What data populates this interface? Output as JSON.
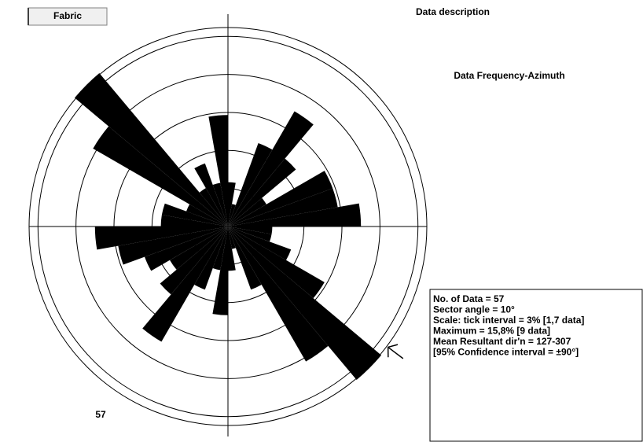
{
  "chart_data": {
    "type": "rose",
    "button": "Fabric",
    "title": "Data description",
    "subtitle": "Data Frequency-Azimuth",
    "count_label": "57",
    "sector_angle": 10,
    "values": [
      3.5,
      1.8,
      7.0,
      10.5,
      7.0,
      3.5,
      8.8,
      8.8,
      10.5,
      3.5,
      3.5,
      5.3,
      8.8,
      15.8,
      12.3,
      5.3,
      1.8,
      3.5,
      7.0,
      3.5,
      5.3,
      10.5,
      7.0,
      5.3,
      7.0,
      8.8,
      10.5,
      5.3,
      5.3,
      3.5,
      12.3,
      15.8,
      3.5,
      5.3,
      3.5,
      8.8
    ],
    "rlim": [
      0,
      15.7
    ],
    "rticks": [
      3,
      6,
      9,
      12,
      15
    ],
    "mean_direction": 127,
    "color": "#000000",
    "stats": [
      "No. of Data = 57",
      "Sector angle = 10°",
      "Scale: tick interval = 3%  [1,7 data]",
      "Maximum = 15,8%  [9 data]",
      "Mean Resultant dir'n  = 127-307",
      "[95% Confidence interval = ±90°]"
    ]
  }
}
